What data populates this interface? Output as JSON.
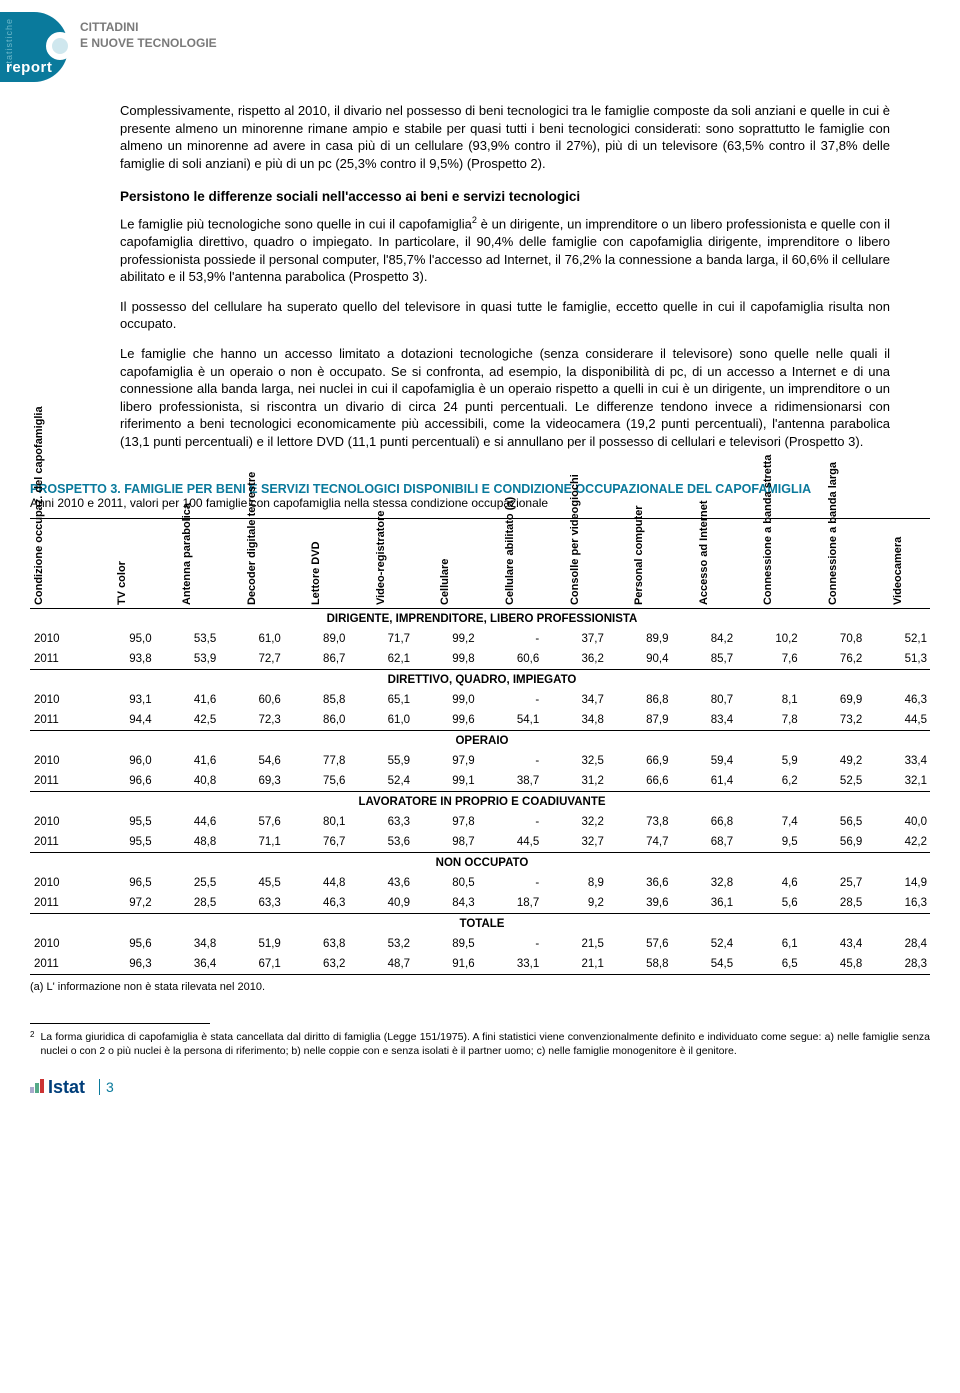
{
  "header": {
    "logo_vertical": "statistiche",
    "logo_word": "report",
    "title_line1": "CITTADINI",
    "title_line2": "E NUOVE TECNOLOGIE"
  },
  "paragraphs": {
    "p1": "Complessivamente, rispetto al 2010, il divario nel possesso di beni tecnologici tra le famiglie composte da soli anziani e quelle in cui è presente almeno un minorenne rimane ampio e stabile per quasi tutti i beni tecnologici considerati: sono soprattutto le famiglie con almeno un minorenne ad avere in casa più di un cellulare (93,9% contro il 27%), più di un televisore (63,5% contro il 37,8% delle famiglie di soli anziani) e più di un pc (25,3% contro il 9,5%) (Prospetto 2).",
    "section_title": "Persistono le differenze sociali nell'accesso ai beni e servizi tecnologici",
    "p2a": "Le famiglie più tecnologiche sono quelle in cui il capofamiglia",
    "p2sup": "2",
    "p2b": " è un dirigente, un imprenditore o un libero professionista e quelle con il capofamiglia direttivo, quadro o impiegato. In particolare, il 90,4% delle famiglie con capofamiglia dirigente, imprenditore o libero professionista possiede il personal computer, l'85,7% l'accesso ad Internet, il 76,2% la connessione a banda larga, il 60,6% il cellulare abilitato e il 53,9% l'antenna parabolica (Prospetto 3).",
    "p3": "Il possesso del cellulare ha superato quello del televisore in quasi tutte le famiglie, eccetto quelle in cui il capofamiglia risulta non occupato.",
    "p4": "Le famiglie che hanno un accesso limitato a dotazioni tecnologiche (senza considerare il televisore) sono quelle nelle quali il capofamiglia è un operaio o non è occupato. Se si confronta, ad esempio, la disponibilità di pc, di un accesso a Internet e di una connessione alla banda larga, nei nuclei in cui il capofamiglia è un operaio rispetto a quelli in cui è un dirigente, un imprenditore o un libero professionista, si riscontra un divario di circa 24 punti percentuali. Le differenze tendono invece a ridimensionarsi con riferimento a beni tecnologici economicamente più accessibili, come la videocamera (19,2 punti percentuali), l'antenna parabolica (13,1 punti percentuali) e il lettore DVD (11,1 punti percentuali) e si annullano per il possesso di cellulari e televisori (Prospetto 3)."
  },
  "table3": {
    "title": "PROSPETTO 3. FAMIGLIE PER BENI E SERVIZI TECNOLOGICI DISPONIBILI E CONDIZIONE OCCUPAZIONALE DEL CAPOFAMIGLIA",
    "subtitle": "Anni 2010 e 2011, valori per 100 famiglie con capofamiglia nella stessa condizione occupazionale",
    "columns": [
      "Condizione occupaz. del capofamiglia",
      "TV color",
      "Antenna parabolica",
      "Decoder digitale terrestre",
      "Lettore DVD",
      "Video-registratore",
      "Cellulare",
      "Cellulare abilitato (a)",
      "Consolle per videogiochi",
      "Personal computer",
      "Accesso ad Internet",
      "Connessione a banda stretta",
      "Connessione a banda larga",
      "Videocamera"
    ],
    "sections": [
      {
        "name": "DIRIGENTE, IMPRENDITORE, LIBERO PROFESSIONISTA",
        "rows": [
          [
            "2010",
            "95,0",
            "53,5",
            "61,0",
            "89,0",
            "71,7",
            "99,2",
            "-",
            "37,7",
            "89,9",
            "84,2",
            "10,2",
            "70,8",
            "52,1"
          ],
          [
            "2011",
            "93,8",
            "53,9",
            "72,7",
            "86,7",
            "62,1",
            "99,8",
            "60,6",
            "36,2",
            "90,4",
            "85,7",
            "7,6",
            "76,2",
            "51,3"
          ]
        ]
      },
      {
        "name": "DIRETTIVO, QUADRO, IMPIEGATO",
        "rows": [
          [
            "2010",
            "93,1",
            "41,6",
            "60,6",
            "85,8",
            "65,1",
            "99,0",
            "-",
            "34,7",
            "86,8",
            "80,7",
            "8,1",
            "69,9",
            "46,3"
          ],
          [
            "2011",
            "94,4",
            "42,5",
            "72,3",
            "86,0",
            "61,0",
            "99,6",
            "54,1",
            "34,8",
            "87,9",
            "83,4",
            "7,8",
            "73,2",
            "44,5"
          ]
        ]
      },
      {
        "name": "OPERAIO",
        "rows": [
          [
            "2010",
            "96,0",
            "41,6",
            "54,6",
            "77,8",
            "55,9",
            "97,9",
            "-",
            "32,5",
            "66,9",
            "59,4",
            "5,9",
            "49,2",
            "33,4"
          ],
          [
            "2011",
            "96,6",
            "40,8",
            "69,3",
            "75,6",
            "52,4",
            "99,1",
            "38,7",
            "31,2",
            "66,6",
            "61,4",
            "6,2",
            "52,5",
            "32,1"
          ]
        ]
      },
      {
        "name": "LAVORATORE IN PROPRIO E COADIUVANTE",
        "rows": [
          [
            "2010",
            "95,5",
            "44,6",
            "57,6",
            "80,1",
            "63,3",
            "97,8",
            "-",
            "32,2",
            "73,8",
            "66,8",
            "7,4",
            "56,5",
            "40,0"
          ],
          [
            "2011",
            "95,5",
            "48,8",
            "71,1",
            "76,7",
            "53,6",
            "98,7",
            "44,5",
            "32,7",
            "74,7",
            "68,7",
            "9,5",
            "56,9",
            "42,2"
          ]
        ]
      },
      {
        "name": "NON OCCUPATO",
        "rows": [
          [
            "2010",
            "96,5",
            "25,5",
            "45,5",
            "44,8",
            "43,6",
            "80,5",
            "-",
            "8,9",
            "36,6",
            "32,8",
            "4,6",
            "25,7",
            "14,9"
          ],
          [
            "2011",
            "97,2",
            "28,5",
            "63,3",
            "46,3",
            "40,9",
            "84,3",
            "18,7",
            "9,2",
            "39,6",
            "36,1",
            "5,6",
            "28,5",
            "16,3"
          ]
        ]
      },
      {
        "name": "TOTALE",
        "rows": [
          [
            "2010",
            "95,6",
            "34,8",
            "51,9",
            "63,8",
            "53,2",
            "89,5",
            "-",
            "21,5",
            "57,6",
            "52,4",
            "6,1",
            "43,4",
            "28,4"
          ],
          [
            "2011",
            "96,3",
            "36,4",
            "67,1",
            "63,2",
            "48,7",
            "91,6",
            "33,1",
            "21,1",
            "58,8",
            "54,5",
            "6,5",
            "45,8",
            "28,3"
          ]
        ]
      }
    ],
    "note": "(a) L' informazione non è stata rilevata nel 2010."
  },
  "footnote": {
    "num": "2",
    "text": "La forma giuridica di capofamiglia è stata cancellata dal diritto di famiglia (Legge 151/1975). A fini statistici viene convenzionalmente definito e individuato come segue: a) nelle famiglie senza nuclei o con 2 o più nuclei è la persona di riferimento; b) nelle coppie con e senza isolati è il partner uomo; c) nelle famiglie monogenitore è il genitore."
  },
  "footer": {
    "brand": "Istat",
    "page": "3"
  }
}
